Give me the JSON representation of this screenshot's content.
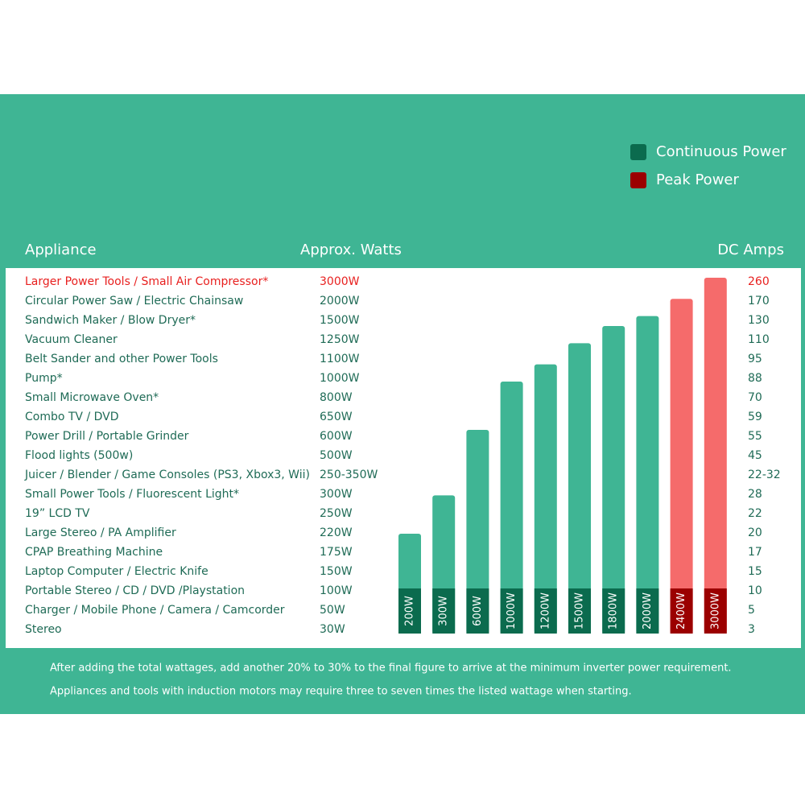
{
  "legend": {
    "items": [
      "Continuous Power",
      "Peak Power"
    ]
  },
  "table": {
    "headers": [
      "Appliance",
      "Approx. Watts",
      "DC Amps"
    ],
    "highlight_row": 0,
    "highlight_color": "#e8201f",
    "rows": [
      [
        "Larger Power Tools / Small Air Compressor*",
        "3000W",
        "260"
      ],
      [
        "Circular Power Saw / Electric Chainsaw",
        "2000W",
        "170"
      ],
      [
        "Sandwich Maker / Blow Dryer*",
        "1500W",
        "130"
      ],
      [
        "Vacuum Cleaner",
        "1250W",
        "110"
      ],
      [
        "Belt Sander and other Power Tools",
        "1100W",
        "95"
      ],
      [
        "Pump*",
        "1000W",
        "88"
      ],
      [
        "Small Microwave Oven*",
        "800W",
        "70"
      ],
      [
        "Combo TV / DVD",
        "650W",
        "59"
      ],
      [
        "Power Drill / Portable Grinder",
        "600W",
        "55"
      ],
      [
        "Flood lights (500w)",
        "500W",
        "45"
      ],
      [
        "Juicer / Blender / Game Consoles (PS3, Xbox3, Wii)",
        "250-350W",
        "22-32"
      ],
      [
        "Small Power Tools / Fluorescent Light*",
        "300W",
        "28"
      ],
      [
        "19” LCD TV",
        "250W",
        "22"
      ],
      [
        "Large Stereo / PA Amplifier",
        "220W",
        "20"
      ],
      [
        "CPAP Breathing Machine",
        "175W",
        "17"
      ],
      [
        "Laptop Computer / Electric Knife",
        "150W",
        "15"
      ],
      [
        "Portable Stereo / CD / DVD /Playstation",
        "100W",
        "10"
      ],
      [
        "Charger / Mobile Phone / Camera / Camcorder",
        "50W",
        "5"
      ],
      [
        "Stereo",
        "30W",
        "3"
      ]
    ]
  },
  "notes": [
    "After adding the total wattages, add another 20% to 30% to the final figure to arrive at the minimum inverter power requirement.",
    "Appliances and tools with induction motors may require three to seven times the listed wattage when starting."
  ],
  "chart_data": {
    "type": "bar",
    "log_scale": true,
    "series": [
      {
        "name": "Continuous Power",
        "color": "#3fb594",
        "label_color": "#0b6b4e",
        "values": [
          200,
          300,
          600,
          1000,
          1200,
          1500,
          1800,
          2000,
          null,
          null
        ],
        "value_labels": [
          "200W",
          "300W",
          "600W",
          "1000W",
          "1200W",
          "1500W",
          "1800W",
          "2000W",
          null,
          null
        ]
      },
      {
        "name": "Peak Power",
        "color": "#f56b6b",
        "label_color": "#9b0000",
        "values": [
          null,
          null,
          null,
          null,
          null,
          null,
          null,
          null,
          2400,
          3000
        ],
        "value_labels": [
          null,
          null,
          null,
          null,
          null,
          null,
          null,
          null,
          "2400W",
          "3000W"
        ]
      }
    ]
  }
}
